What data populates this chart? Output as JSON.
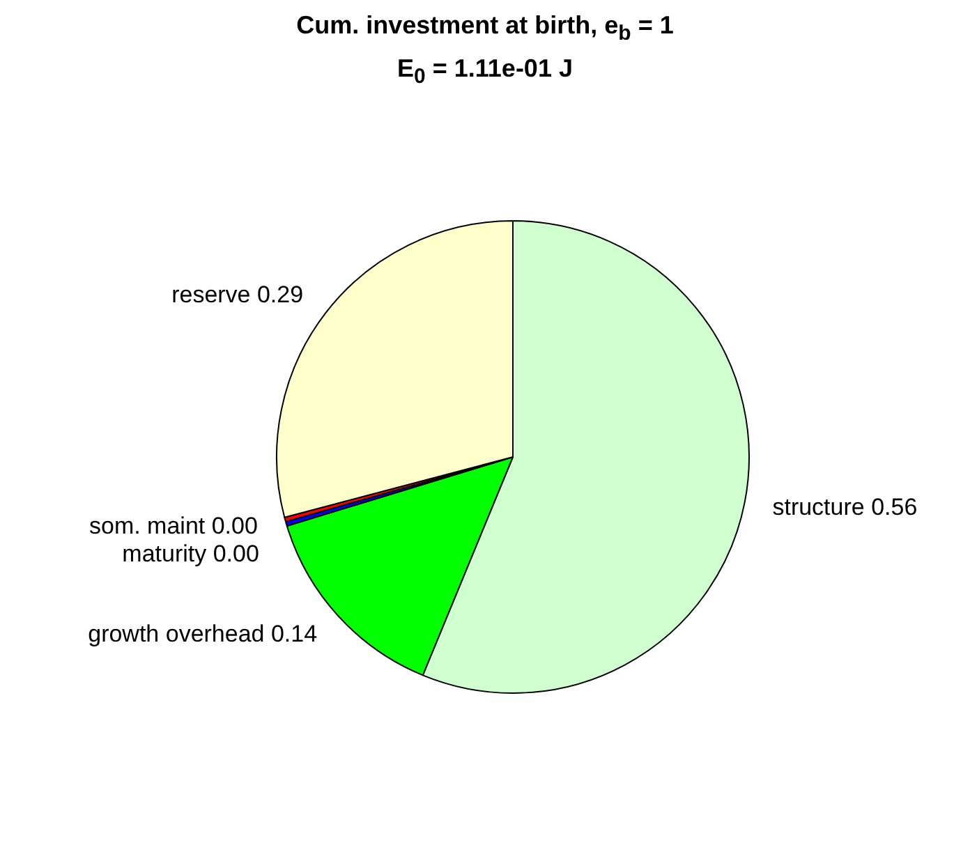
{
  "chart_data": {
    "type": "pie",
    "title": "Cum. investment at birth, e$_{b}$ = 1",
    "subtitle": "E$_{0}$ = 1.11e-01 J",
    "categories": [
      "structure",
      "growth overhead",
      "maturity",
      "som. maint",
      "reserve"
    ],
    "values": [
      0.56,
      0.14,
      0.003,
      0.003,
      0.29
    ],
    "value_labels": [
      "0.56",
      "0.14",
      "0.00",
      "0.00",
      "0.29"
    ],
    "colors": [
      "#d0ffd0",
      "#00ff00",
      "#0000ff",
      "#ff0000",
      "#ffffcc"
    ],
    "legend": false
  }
}
